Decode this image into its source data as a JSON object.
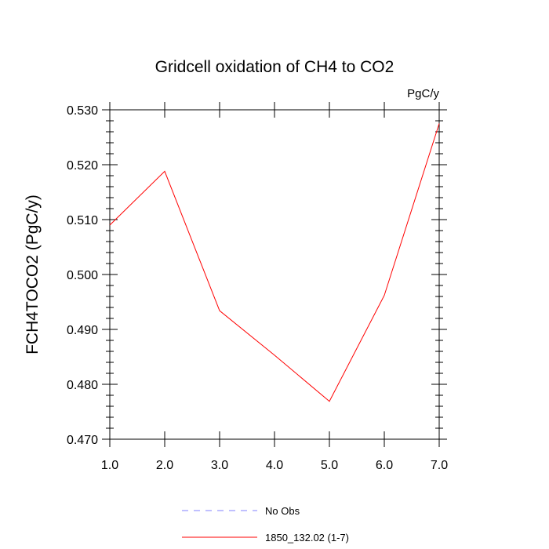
{
  "chart_data": {
    "type": "line",
    "title": "Gridcell oxidation of CH4 to CO2",
    "units_label": "PgC/y",
    "ylabel": "FCH4TOCO2  (PgC/y)",
    "xlabel": "",
    "xlim": [
      1.0,
      7.0
    ],
    "ylim": [
      0.47,
      0.53
    ],
    "x_ticks": [
      1.0,
      2.0,
      3.0,
      4.0,
      5.0,
      6.0,
      7.0
    ],
    "x_tick_labels": [
      "1.0",
      "2.0",
      "3.0",
      "4.0",
      "5.0",
      "6.0",
      "7.0"
    ],
    "y_ticks": [
      0.47,
      0.48,
      0.49,
      0.5,
      0.51,
      0.52,
      0.53
    ],
    "y_tick_labels": [
      "0.470",
      "0.480",
      "0.490",
      "0.500",
      "0.510",
      "0.520",
      "0.530"
    ],
    "grid": false,
    "legend_position": "bottom",
    "series": [
      {
        "name": "1850_132.02 (1-7)",
        "color": "#ff0000",
        "dash": "solid",
        "x": [
          1,
          2,
          3,
          4,
          5,
          6,
          7
        ],
        "values": [
          0.509,
          0.5188,
          0.4934,
          0.4853,
          0.4769,
          0.4962,
          0.5275
        ]
      }
    ],
    "legend": [
      {
        "label": "No Obs",
        "color": "#8080ff",
        "dash": "dashed"
      },
      {
        "label": "1850_132.02 (1-7)",
        "color": "#ff0000",
        "dash": "solid"
      }
    ]
  }
}
